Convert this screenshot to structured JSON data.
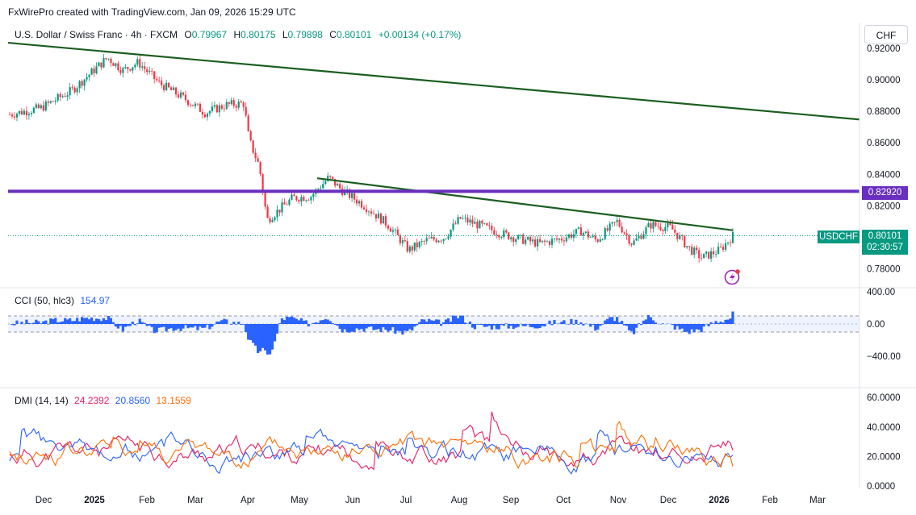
{
  "header": {
    "credit": "FxWirePro created with TradingView.com, Jan 09, 2026 15:29 UTC"
  },
  "legend": {
    "symbol": "U.S. Dollar / Swiss Franc · 4h · FXCM",
    "o_label": "O",
    "o": "0.79967",
    "h_label": "H",
    "h": "0.80175",
    "l_label": "L",
    "l": "0.79898",
    "c_label": "C",
    "c": "0.80101",
    "change": "+0.00134 (+0.17%)"
  },
  "currency_button": "CHF",
  "tags": {
    "level": "0.82920",
    "symbol": "USDCHF",
    "price": "0.80101",
    "countdown": "02:30:57"
  },
  "cci": {
    "title": "CCI (50, hlc3)",
    "value": "154.97",
    "axis": [
      "400.00",
      "0.00",
      "−400.00"
    ]
  },
  "dmi": {
    "title": "DMI (14, 14)",
    "v1": "24.2392",
    "v2": "20.8560",
    "v3": "13.1559",
    "axis": [
      "60.0000",
      "40.0000",
      "20.0000",
      "0.0000"
    ]
  },
  "colors": {
    "up": "#089981",
    "down": "#f23645",
    "trendline": "#1b5e20",
    "level": "#6a2fbf",
    "cci": "#2962ff",
    "dmi_plus": "#e91e63",
    "dmi_minus": "#2962ff",
    "adx": "#ff6d00",
    "price_tag": "#089981"
  },
  "chart_data": [
    {
      "type": "candlestick",
      "title": "U.S. Dollar / Swiss Franc · 4h · FXCM",
      "x_ticks": [
        "Dec",
        "2025",
        "Feb",
        "Mar",
        "Apr",
        "May",
        "Jun",
        "Jul",
        "Aug",
        "Sep",
        "Oct",
        "Nov",
        "Dec",
        "2026",
        "Feb",
        "Mar"
      ],
      "y_ticks": [
        "0.92000",
        "0.90000",
        "0.88000",
        "0.86000",
        "0.84000",
        "0.82000",
        "0.80000",
        "0.78000"
      ],
      "ylim": [
        0.776,
        0.923
      ],
      "approx_close_path": [
        [
          "Nov 2024",
          0.878
        ],
        [
          "Dec 2024",
          0.882
        ],
        [
          "Jan 2025",
          0.905
        ],
        [
          "mid Jan",
          0.914
        ],
        [
          "Feb 2025",
          0.91
        ],
        [
          "Mar 2025",
          0.888
        ],
        [
          "early Apr",
          0.88
        ],
        [
          "mid Apr",
          0.812
        ],
        [
          "May 2025",
          0.822
        ],
        [
          "mid May",
          0.838
        ],
        [
          "Jun 2025",
          0.822
        ],
        [
          "Jul 2025",
          0.792
        ],
        [
          "Aug 2025",
          0.806
        ],
        [
          "Sep 2025",
          0.798
        ],
        [
          "Oct 2025",
          0.8
        ],
        [
          "Nov 2025",
          0.805
        ],
        [
          "Dec 2025",
          0.798
        ],
        [
          "late Dec",
          0.787
        ],
        [
          "Jan 09 2026",
          0.80101
        ]
      ],
      "trendlines": [
        {
          "from": [
            "Nov 2024",
            0.922
          ],
          "to": [
            "Mar 2026",
            0.875
          ]
        },
        {
          "from": [
            "mid May 2025",
            0.837
          ],
          "to": [
            "Jan 2026",
            0.804
          ]
        }
      ],
      "horizontal_level": 0.8292,
      "last_price": 0.80101
    },
    {
      "type": "histogram",
      "title": "CCI (50, hlc3)",
      "last_value": 154.97,
      "y_ticks": [
        400,
        0,
        -400
      ],
      "band": [
        -100,
        100
      ]
    },
    {
      "type": "line",
      "title": "DMI (14, 14)",
      "ylim": [
        0,
        60
      ],
      "series": [
        {
          "name": "24.2392",
          "last": 24.2392
        },
        {
          "name": "20.8560",
          "last": 20.856
        },
        {
          "name": "13.1559",
          "last": 13.1559
        }
      ]
    }
  ]
}
